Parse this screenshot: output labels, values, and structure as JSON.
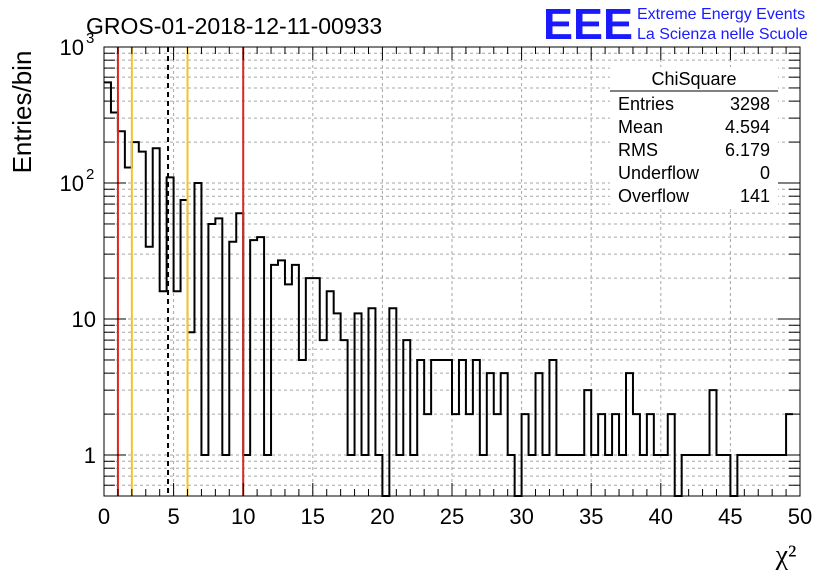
{
  "chart_data": {
    "type": "bar",
    "title": "GROS-01-2018-12-11-00933",
    "xlabel": "χ²",
    "ylabel": "Entries/bin",
    "xlim": [
      0,
      50
    ],
    "ylim": [
      0.5,
      1000
    ],
    "yscale": "log",
    "grid": true,
    "x_ticks": [
      "0",
      "5",
      "10",
      "15",
      "20",
      "25",
      "30",
      "35",
      "40",
      "45",
      "50"
    ],
    "y_ticks": [
      {
        "mantissa": "1",
        "exp": ""
      },
      {
        "mantissa": "10",
        "exp": ""
      },
      {
        "mantissa": "10",
        "exp": "2"
      },
      {
        "mantissa": "10",
        "exp": "3"
      }
    ],
    "bin_width": 0.5,
    "bin_edges_start": 0,
    "values": [
      550,
      330,
      240,
      130,
      200,
      170,
      34,
      180,
      16,
      110,
      16,
      75,
      8,
      100,
      1,
      50,
      55,
      1,
      37,
      60,
      1,
      38,
      40,
      1,
      25,
      27,
      18,
      25,
      5,
      20,
      20,
      7,
      16,
      11,
      7,
      1,
      11,
      1,
      12,
      1,
      0,
      12,
      1,
      7,
      1,
      5,
      2,
      5,
      5,
      5,
      2,
      5,
      2,
      5,
      1,
      4,
      2,
      4,
      1,
      0,
      2,
      1,
      4,
      1,
      5,
      1,
      1,
      1,
      1,
      3,
      1,
      2,
      1,
      2,
      1,
      4,
      2,
      1,
      2,
      1,
      1,
      2,
      0,
      1,
      1,
      1,
      1,
      3,
      1,
      1,
      0,
      1,
      1,
      1,
      1,
      1,
      1,
      1,
      2
    ],
    "vertical_lines": [
      {
        "x": 1.0,
        "color": "#e0251f",
        "style": "solid"
      },
      {
        "x": 2.0,
        "color": "#f3c22c",
        "style": "solid"
      },
      {
        "x": 4.6,
        "color": "#000000",
        "style": "dashed"
      },
      {
        "x": 6.0,
        "color": "#f3c22c",
        "style": "solid"
      },
      {
        "x": 10.0,
        "color": "#e0251f",
        "style": "solid"
      }
    ],
    "stats_box": {
      "title": "ChiSquare",
      "rows": [
        {
          "label": "Entries",
          "value": "3298"
        },
        {
          "label": "Mean",
          "value": "4.594"
        },
        {
          "label": "RMS",
          "value": "6.179"
        },
        {
          "label": "Underflow",
          "value": "0"
        },
        {
          "label": "Overflow",
          "value": "141"
        }
      ]
    }
  },
  "logo": {
    "mark": "EEE",
    "line1": "Extreme Energy Events",
    "line2": "La Scienza nelle Scuole",
    "color": "#1a1aff"
  },
  "colors": {
    "histogram": "#000000",
    "grid": "#aaaaaa",
    "red_line": "#e0251f",
    "yellow_line": "#f3c22c"
  }
}
